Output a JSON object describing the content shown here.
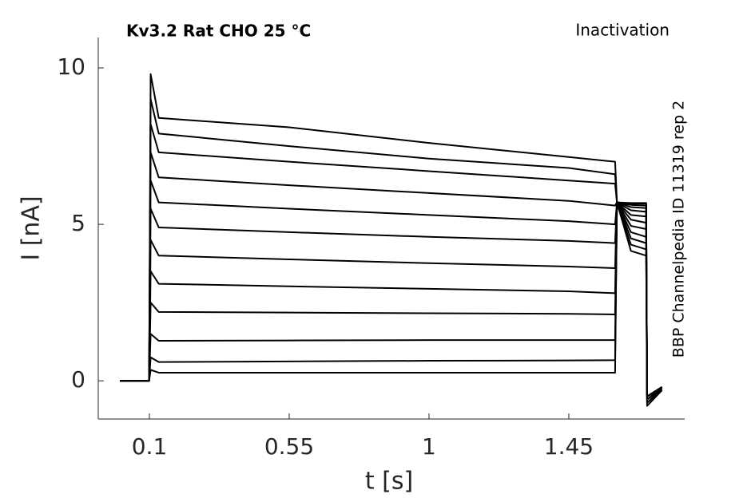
{
  "chart_data": {
    "type": "line",
    "title": "Kv3.2  Rat  CHO  25 °C",
    "annotation": "Inactivation",
    "side_label": "BBP Channelpedia ID 11319 rep 2",
    "xlabel": "t [s]",
    "ylabel": "I [nA]",
    "xlim": [
      -0.0646,
      1.823
    ],
    "ylim": [
      -1.22,
      10.97
    ],
    "xticks": [
      0.1,
      0.55,
      1,
      1.45
    ],
    "yticks": [
      0,
      5,
      10
    ],
    "grid": false,
    "x": [
      0.005,
      0.099,
      0.104,
      0.13,
      0.55,
      1,
      1.45,
      1.599,
      1.605,
      1.65,
      1.699,
      1.702,
      1.75
    ],
    "series": [
      {
        "color": "#000000",
        "values": [
          0,
          0,
          0.35,
          0.26,
          0.26,
          0.26,
          0.26,
          0.26,
          5.7,
          5.68,
          5.68,
          -0.5,
          -0.2
        ]
      },
      {
        "color": "#000000",
        "values": [
          0,
          0,
          0.75,
          0.6,
          0.62,
          0.64,
          0.65,
          0.66,
          5.7,
          5.66,
          5.66,
          -0.5,
          -0.2
        ]
      },
      {
        "color": "#000000",
        "values": [
          0,
          0,
          1.5,
          1.28,
          1.29,
          1.3,
          1.3,
          1.3,
          5.7,
          5.62,
          5.6,
          -0.5,
          -0.2
        ]
      },
      {
        "color": "#000000",
        "values": [
          0,
          0,
          2.5,
          2.2,
          2.18,
          2.16,
          2.14,
          2.12,
          5.7,
          5.55,
          5.52,
          -0.5,
          -0.2
        ]
      },
      {
        "color": "#000000",
        "values": [
          0,
          0,
          3.5,
          3.1,
          3.02,
          2.94,
          2.86,
          2.8,
          5.7,
          5.45,
          5.4,
          -0.5,
          -0.2
        ]
      },
      {
        "color": "#000000",
        "values": [
          0,
          0,
          4.5,
          4.0,
          3.88,
          3.76,
          3.65,
          3.6,
          5.7,
          5.3,
          5.25,
          -0.5,
          -0.2
        ]
      },
      {
        "color": "#000000",
        "values": [
          0,
          0,
          5.5,
          4.9,
          4.75,
          4.6,
          4.47,
          4.4,
          5.7,
          5.15,
          5.05,
          -0.5,
          -0.2
        ]
      },
      {
        "color": "#000000",
        "values": [
          0,
          0,
          6.4,
          5.7,
          5.5,
          5.3,
          5.1,
          5.0,
          5.7,
          4.95,
          4.85,
          -0.6,
          -0.2
        ]
      },
      {
        "color": "#000000",
        "values": [
          0,
          0,
          7.3,
          6.5,
          6.25,
          6.0,
          5.75,
          5.6,
          5.7,
          4.75,
          4.6,
          -0.6,
          -0.25
        ]
      },
      {
        "color": "#000000",
        "values": [
          0,
          0,
          8.2,
          7.3,
          7.0,
          6.7,
          6.4,
          6.3,
          5.7,
          4.55,
          4.4,
          -0.7,
          -0.25
        ]
      },
      {
        "color": "#000000",
        "values": [
          0,
          0,
          9.0,
          7.9,
          7.5,
          7.1,
          6.8,
          6.6,
          5.7,
          4.35,
          4.2,
          -0.7,
          -0.3
        ]
      },
      {
        "color": "#000000",
        "values": [
          0,
          0,
          9.8,
          8.4,
          8.1,
          7.6,
          7.15,
          7.0,
          5.7,
          4.15,
          4.0,
          -0.8,
          -0.3
        ]
      }
    ]
  }
}
